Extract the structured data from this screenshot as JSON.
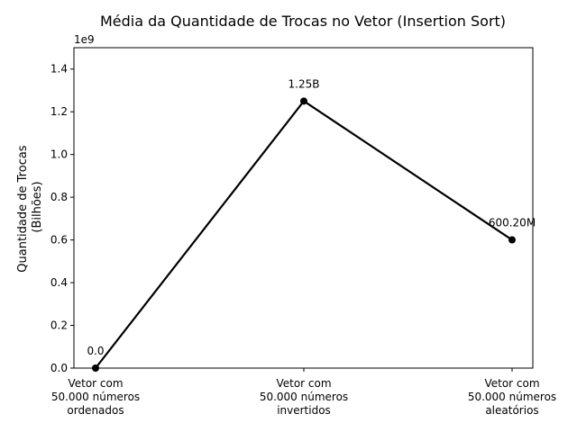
{
  "chart_data": {
    "type": "line",
    "title": "Média da Quantidade de Trocas no Vetor (Insertion Sort)",
    "xlabel": "",
    "ylabel_lines": [
      "Quantidade de Trocas",
      "(Bilhões)"
    ],
    "offset_text": "1e9",
    "categories": [
      [
        "Vetor com",
        "50.000 números",
        "ordenados"
      ],
      [
        "Vetor com",
        "50.000 números",
        "invertidos"
      ],
      [
        "Vetor com",
        "50.000 números",
        "aleatórios"
      ]
    ],
    "values": [
      0,
      1250000000,
      600200000
    ],
    "data_labels": [
      "0.0",
      "1.25B",
      "600.20M"
    ],
    "ylim": [
      0,
      1.5
    ],
    "yscale": 1000000000,
    "yticks": [
      0.0,
      0.2,
      0.4,
      0.6,
      0.8,
      1.0,
      1.2,
      1.4
    ],
    "ytick_labels": [
      "0.0",
      "0.2",
      "0.4",
      "0.6",
      "0.8",
      "1.0",
      "1.2",
      "1.4"
    ],
    "grid": false,
    "line_color": "#000000",
    "marker": "circle"
  }
}
